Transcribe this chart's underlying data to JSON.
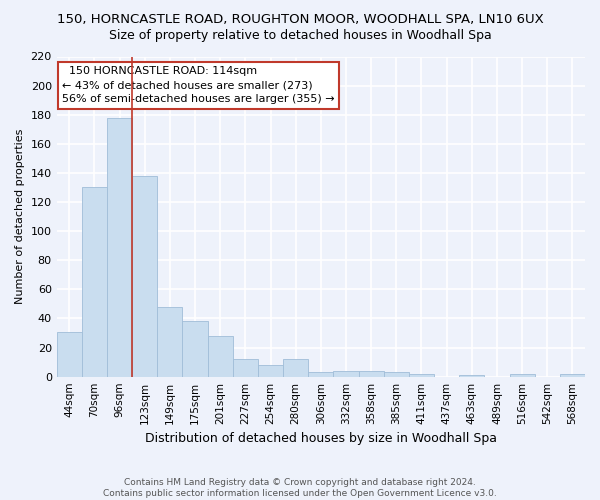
{
  "title1": "150, HORNCASTLE ROAD, ROUGHTON MOOR, WOODHALL SPA, LN10 6UX",
  "title2": "Size of property relative to detached houses in Woodhall Spa",
  "xlabel": "Distribution of detached houses by size in Woodhall Spa",
  "ylabel": "Number of detached properties",
  "footnote": "Contains HM Land Registry data © Crown copyright and database right 2024.\nContains public sector information licensed under the Open Government Licence v3.0.",
  "bar_labels": [
    "44sqm",
    "70sqm",
    "96sqm",
    "123sqm",
    "149sqm",
    "175sqm",
    "201sqm",
    "227sqm",
    "254sqm",
    "280sqm",
    "306sqm",
    "332sqm",
    "358sqm",
    "385sqm",
    "411sqm",
    "437sqm",
    "463sqm",
    "489sqm",
    "516sqm",
    "542sqm",
    "568sqm"
  ],
  "bar_values": [
    31,
    130,
    178,
    138,
    48,
    38,
    28,
    12,
    8,
    12,
    3,
    4,
    4,
    3,
    2,
    0,
    1,
    0,
    2,
    0,
    2
  ],
  "bar_color": "#c9ddef",
  "bar_edge_color": "#a0bdd8",
  "background_color": "#eef2fb",
  "grid_color": "#ffffff",
  "vline_x": 2.5,
  "vline_color": "#c0392b",
  "annotation_text": "  150 HORNCASTLE ROAD: 114sqm\n← 43% of detached houses are smaller (273)\n56% of semi-detached houses are larger (355) →",
  "annotation_box_color": "#ffffff",
  "annotation_box_edge": "#c0392b",
  "ylim": [
    0,
    220
  ],
  "yticks": [
    0,
    20,
    40,
    60,
    80,
    100,
    120,
    140,
    160,
    180,
    200,
    220
  ],
  "title1_fontsize": 9.5,
  "title2_fontsize": 9,
  "ylabel_fontsize": 8,
  "xlabel_fontsize": 9,
  "tick_fontsize": 8,
  "annot_fontsize": 8
}
